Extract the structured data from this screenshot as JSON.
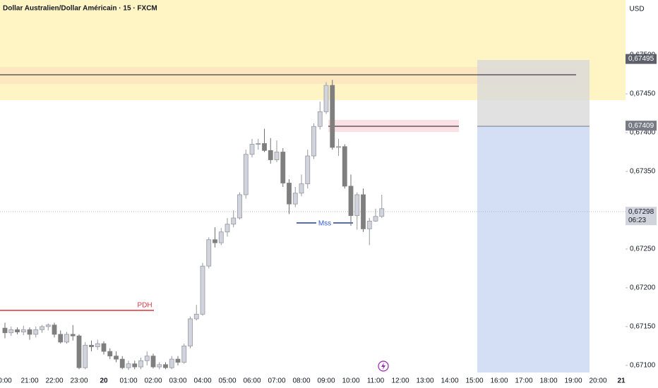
{
  "chart_data": {
    "type": "candlestick",
    "title": "Dollar Australien/Dollar Américain · 15 · FXCM",
    "currency": "USD",
    "annotations": [
      "PDH",
      "Mss"
    ],
    "countdown": "06:23",
    "xlim": [
      -0.2,
      25.114
    ],
    "ylim": [
      0.67089,
      0.67571
    ],
    "xticks": [
      {
        "value": 0,
        "label": "0:00"
      },
      {
        "value": 1,
        "label": "21:00"
      },
      {
        "value": 2,
        "label": "22:00"
      },
      {
        "value": 3,
        "label": "23:00"
      },
      20,
      {
        "value": 5,
        "label": "01:00"
      },
      {
        "value": 6,
        "label": "02:00"
      },
      {
        "value": 7,
        "label": "03:00"
      },
      {
        "value": 8,
        "label": "04:00"
      },
      {
        "value": 9,
        "label": "05:00"
      },
      {
        "value": 10,
        "label": "06:00"
      },
      {
        "value": 11,
        "label": "07:00"
      },
      {
        "value": 12,
        "label": "08:00"
      },
      {
        "value": 13,
        "label": "09:00"
      },
      {
        "value": 14,
        "label": "10:00"
      },
      {
        "value": 15,
        "label": "11:00"
      },
      {
        "value": 16,
        "label": "12:00"
      },
      {
        "value": 17,
        "label": "13:00"
      },
      {
        "value": 18,
        "label": "14:00"
      },
      {
        "value": 19,
        "label": "15:00"
      },
      {
        "value": 20,
        "label": "16:00"
      },
      {
        "value": 21,
        "label": "17:00"
      },
      {
        "value": 22,
        "label": "18:00"
      },
      {
        "value": 23,
        "label": "19:00"
      },
      {
        "value": 24,
        "label": "20:00"
      },
      21
    ],
    "yticks": [
      {
        "value": 0.671,
        "label": "0,67100"
      },
      {
        "value": 0.6715,
        "label": "0,67150"
      },
      {
        "value": 0.672,
        "label": "0,67200"
      },
      {
        "value": 0.6725,
        "label": "0,67250"
      },
      {
        "value": 0.673,
        "label": "0,67300"
      },
      {
        "value": 0.6735,
        "label": "0,67350"
      },
      {
        "value": 0.674,
        "label": "0,67400"
      },
      {
        "value": 0.6745,
        "label": "0,67450"
      },
      {
        "value": 0.675,
        "label": "0,67500"
      }
    ],
    "price_labels": [
      {
        "value": 0.67495,
        "label": "0,67495"
      },
      {
        "value": 0.67409,
        "label": "0,67409"
      },
      {
        "value": 0.67298,
        "label": "0,67298"
      }
    ],
    "up_color": "#d1d4dc",
    "down_color": "#7f7f7f",
    "x": [
      0,
      0.25,
      0.5,
      0.75,
      1,
      1.25,
      1.5,
      1.75,
      2,
      2.25,
      2.5,
      2.75,
      3,
      3.25,
      3.5,
      3.75,
      4,
      4.25,
      4.5,
      4.75,
      5,
      5.25,
      5.5,
      5.75,
      6,
      6.25,
      6.5,
      6.75,
      7,
      7.25,
      7.5,
      7.75,
      8,
      8.25,
      8.5,
      8.75,
      9,
      9.25,
      9.5,
      9.75,
      10,
      10.25,
      10.5,
      10.75,
      11,
      11.25,
      11.5,
      11.75,
      12,
      12.25,
      12.5,
      12.75,
      13,
      13.25,
      13.5,
      13.75,
      14,
      14.25,
      14.5,
      14.75,
      15,
      15.25
    ],
    "open": [
      0.67148,
      0.67142,
      0.67146,
      0.67143,
      0.67146,
      0.6714,
      0.67146,
      0.6715,
      0.67152,
      0.6714,
      0.6713,
      0.6714,
      0.67138,
      0.67097,
      0.67126,
      0.67124,
      0.67128,
      0.67118,
      0.67112,
      0.67108,
      0.67097,
      0.67102,
      0.67098,
      0.67106,
      0.67112,
      0.67098,
      0.67101,
      0.67097,
      0.67108,
      0.67104,
      0.67125,
      0.6716,
      0.67166,
      0.67228,
      0.67262,
      0.67258,
      0.67272,
      0.67282,
      0.6729,
      0.6732,
      0.67372,
      0.67385,
      0.67386,
      0.67377,
      0.67365,
      0.67375,
      0.67335,
      0.67308,
      0.67322,
      0.67334,
      0.6737,
      0.67408,
      0.67427,
      0.67461,
      0.67381,
      0.67382,
      0.67331,
      0.67293,
      0.6732,
      0.67276,
      0.67286,
      0.67292
    ],
    "high": [
      0.67155,
      0.6715,
      0.67149,
      0.67151,
      0.67149,
      0.6715,
      0.67152,
      0.67154,
      0.67155,
      0.67145,
      0.67143,
      0.67152,
      0.6714,
      0.6713,
      0.67132,
      0.67133,
      0.67131,
      0.67122,
      0.67118,
      0.67112,
      0.67106,
      0.67106,
      0.6711,
      0.67118,
      0.67115,
      0.67104,
      0.67104,
      0.67112,
      0.67112,
      0.67128,
      0.67163,
      0.67178,
      0.67232,
      0.67265,
      0.67278,
      0.67277,
      0.6729,
      0.673,
      0.67323,
      0.67378,
      0.67392,
      0.67392,
      0.67405,
      0.67393,
      0.6739,
      0.6738,
      0.6734,
      0.6733,
      0.67346,
      0.67378,
      0.67412,
      0.6744,
      0.67465,
      0.67468,
      0.67392,
      0.67385,
      0.67346,
      0.67323,
      0.67328,
      0.6729,
      0.67302,
      0.6732
    ],
    "low": [
      0.67135,
      0.67138,
      0.6714,
      0.67139,
      0.67133,
      0.67136,
      0.67142,
      0.67145,
      0.67136,
      0.67128,
      0.67128,
      0.67132,
      0.67095,
      0.67095,
      0.67118,
      0.6712,
      0.67114,
      0.67108,
      0.67104,
      0.67095,
      0.67094,
      0.67095,
      0.67095,
      0.671,
      0.67096,
      0.67095,
      0.67095,
      0.67095,
      0.671,
      0.67102,
      0.67122,
      0.67158,
      0.67164,
      0.67225,
      0.67252,
      0.67255,
      0.67266,
      0.67278,
      0.67288,
      0.67315,
      0.67368,
      0.67378,
      0.67375,
      0.6736,
      0.67362,
      0.6733,
      0.67295,
      0.67304,
      0.67318,
      0.67328,
      0.67366,
      0.67404,
      0.67424,
      0.67378,
      0.6737,
      0.67328,
      0.6728,
      0.67275,
      0.67272,
      0.67255,
      0.67285,
      0.6729
    ],
    "close": [
      0.67142,
      0.67146,
      0.67143,
      0.67146,
      0.6714,
      0.67146,
      0.6715,
      0.67152,
      0.6714,
      0.6713,
      0.6714,
      0.67138,
      0.67097,
      0.67126,
      0.67124,
      0.67128,
      0.67118,
      0.67112,
      0.67108,
      0.67097,
      0.67102,
      0.67098,
      0.67106,
      0.67112,
      0.67098,
      0.67101,
      0.67097,
      0.67108,
      0.67104,
      0.67125,
      0.6716,
      0.67166,
      0.67228,
      0.67262,
      0.67258,
      0.67272,
      0.67282,
      0.6729,
      0.6732,
      0.67372,
      0.67385,
      0.67386,
      0.67377,
      0.67365,
      0.67375,
      0.67335,
      0.67308,
      0.67322,
      0.67334,
      0.6737,
      0.67408,
      0.67427,
      0.67461,
      0.67381,
      0.67382,
      0.67331,
      0.67293,
      0.6732,
      0.67276,
      0.67286,
      0.67292,
      0.67302
    ]
  }
}
